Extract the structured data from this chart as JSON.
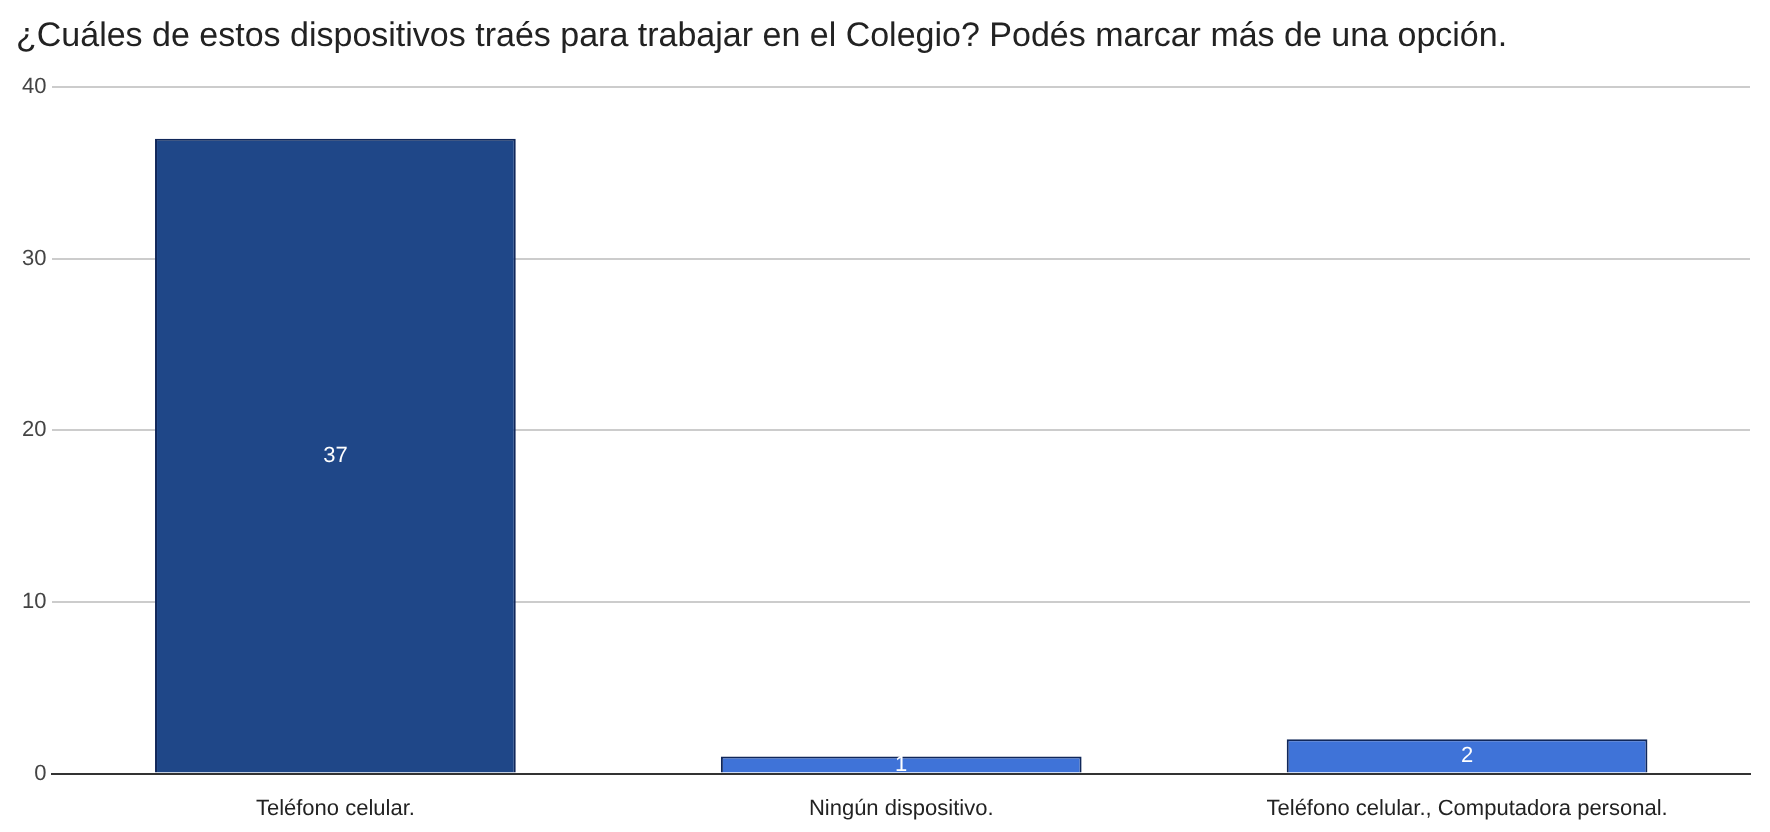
{
  "chart_data": {
    "type": "bar",
    "title": "¿Cuáles de estos dispositivos traés para trabajar en el Colegio? Podés marcar más de una opción.",
    "categories": [
      "Teléfono celular.",
      "Ningún dispositivo.",
      "Teléfono celular., Computadora personal."
    ],
    "values": [
      37,
      1,
      2
    ],
    "colors": [
      "#1f4788",
      "#3f73d8",
      "#3f73d8"
    ],
    "ylim": [
      0,
      40
    ],
    "yticks": [
      0,
      10,
      20,
      30,
      40
    ],
    "grid": "y",
    "legend": false,
    "data_labels": true
  }
}
